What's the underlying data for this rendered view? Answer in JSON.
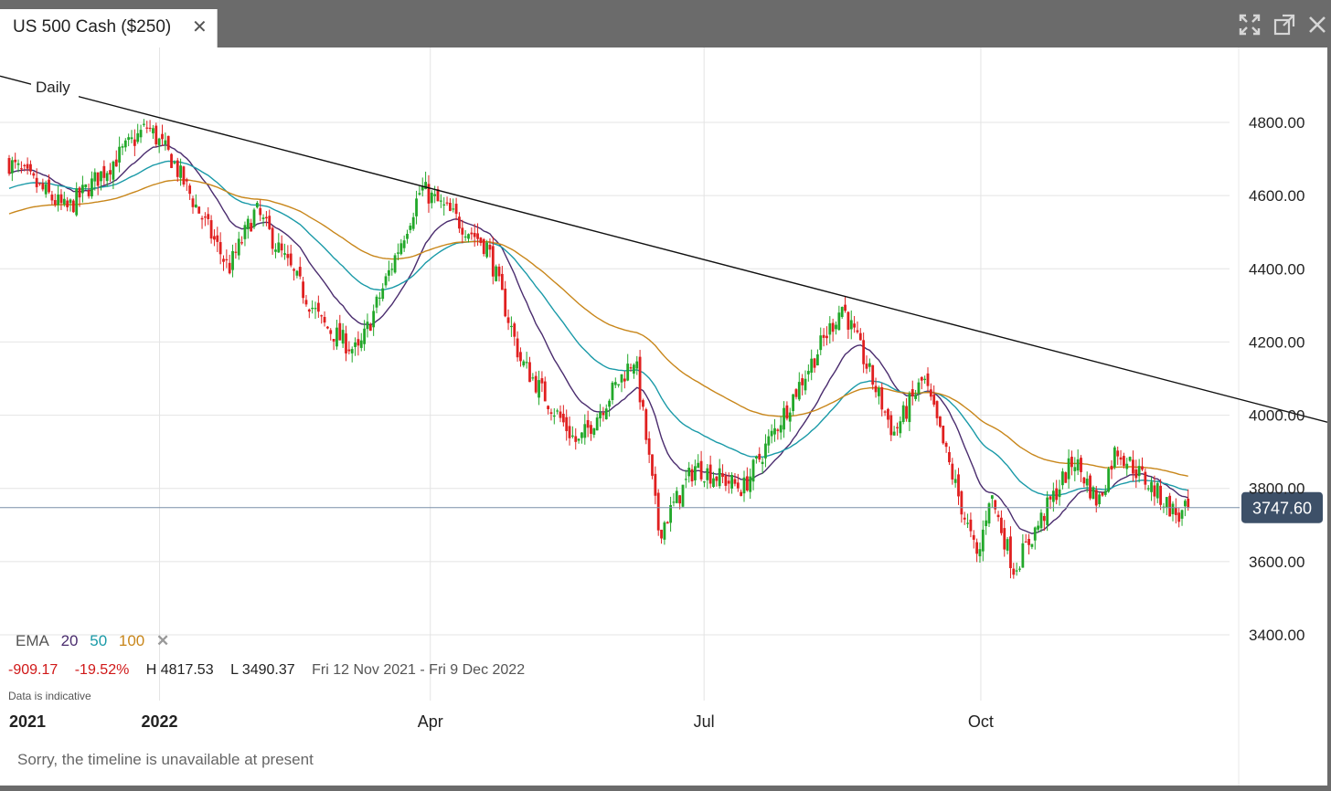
{
  "window": {
    "tab_title": "US 500 Cash ($250)",
    "tab_close": "✕",
    "controls": [
      "expand-icon",
      "popout-icon",
      "close-icon"
    ]
  },
  "chart_data": {
    "type": "candlestick",
    "timeframe_label": "Daily",
    "x_tick_labels": [
      "2021",
      "2022",
      "Apr",
      "Jul",
      "Oct"
    ],
    "y_ticks": [
      3400,
      3600,
      3800,
      4000,
      4200,
      4400,
      4600,
      4800
    ],
    "y_tick_labels": [
      "3400.00",
      "3600.00",
      "3800.00",
      "4000.00",
      "4200.00",
      "4400.00",
      "4600.00",
      "4800.00"
    ],
    "ylim": [
      3270,
      4960
    ],
    "current_price": 3747.6,
    "current_price_label": "3747.60",
    "trendline": {
      "from": {
        "date": "2021-11-12",
        "price": 4920
      },
      "to": {
        "date": "2022-12-09",
        "price": 4080
      }
    },
    "close_path": [
      {
        "date": "2021-11-12",
        "price": 4690
      },
      {
        "date": "2021-12-01",
        "price": 4560
      },
      {
        "date": "2021-12-28",
        "price": 4790
      },
      {
        "date": "2022-01-05",
        "price": 4700
      },
      {
        "date": "2022-01-24",
        "price": 4400
      },
      {
        "date": "2022-02-02",
        "price": 4560
      },
      {
        "date": "2022-02-24",
        "price": 4250
      },
      {
        "date": "2022-03-08",
        "price": 4170
      },
      {
        "date": "2022-03-29",
        "price": 4620
      },
      {
        "date": "2022-04-20",
        "price": 4460
      },
      {
        "date": "2022-05-01",
        "price": 4150
      },
      {
        "date": "2022-05-20",
        "price": 3920
      },
      {
        "date": "2022-06-08",
        "price": 4160
      },
      {
        "date": "2022-06-16",
        "price": 3680
      },
      {
        "date": "2022-06-28",
        "price": 3860
      },
      {
        "date": "2022-07-14",
        "price": 3800
      },
      {
        "date": "2022-08-16",
        "price": 4300
      },
      {
        "date": "2022-09-02",
        "price": 3950
      },
      {
        "date": "2022-09-12",
        "price": 4100
      },
      {
        "date": "2022-09-30",
        "price": 3600
      },
      {
        "date": "2022-10-04",
        "price": 3790
      },
      {
        "date": "2022-10-12",
        "price": 3580
      },
      {
        "date": "2022-11-01",
        "price": 3880
      },
      {
        "date": "2022-11-09",
        "price": 3760
      },
      {
        "date": "2022-11-15",
        "price": 3910
      },
      {
        "date": "2022-12-06",
        "price": 3720
      },
      {
        "date": "2022-12-09",
        "price": 3747.6
      }
    ],
    "ema": {
      "label": "EMA",
      "remove_icon": "✕",
      "periods": [
        {
          "name": "20",
          "period": 20,
          "color": "#4a2c6e"
        },
        {
          "name": "50",
          "period": 50,
          "color": "#1a9aa8"
        },
        {
          "name": "100",
          "period": 100,
          "color": "#c8861a"
        }
      ]
    },
    "colors": {
      "up": "#22a82a",
      "down": "#e02020",
      "trendline": "#111111",
      "price_line": "#7a8fa8",
      "price_badge": "#3d5068"
    }
  },
  "stats": {
    "change": "-909.17",
    "change_pct": "-19.52%",
    "high": "H 4817.53",
    "low": "L 3490.37",
    "range": "Fri 12 Nov 2021 - Fri 9 Dec 2022"
  },
  "footer": {
    "indicative": "Data is indicative",
    "timeline_message": "Sorry, the timeline is unavailable at present"
  }
}
